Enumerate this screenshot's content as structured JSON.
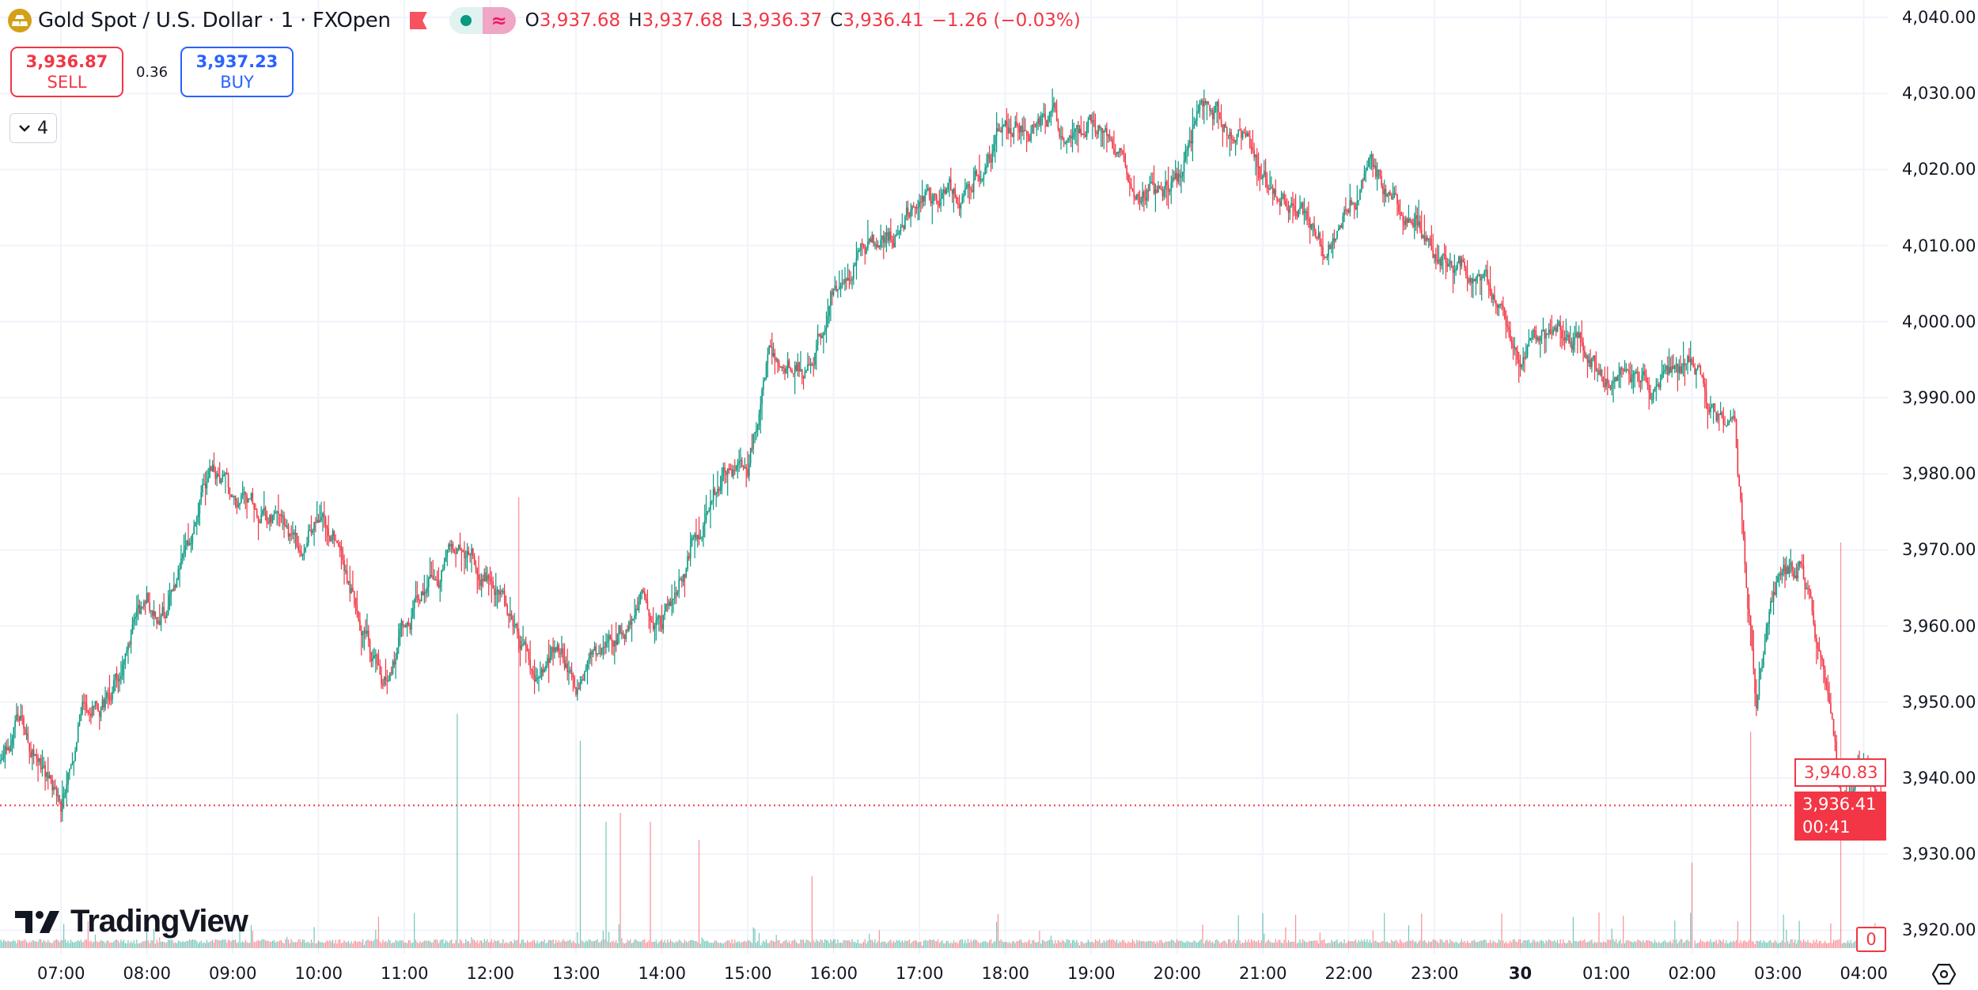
{
  "header": {
    "symbol_title": "Gold Spot / U.S. Dollar · 1 · FXOpen",
    "ohlc": {
      "o_label": "O",
      "o": "3,937.68",
      "h_label": "H",
      "h": "3,937.68",
      "l_label": "L",
      "l": "3,936.37",
      "c_label": "C",
      "c": "3,936.41",
      "change": "−1.26 (−0.03%)"
    },
    "icons": {
      "logo": "gold-bars-icon",
      "flag": "flag-icon",
      "status": "market-open-dot-icon",
      "data": "delayed-data-icon"
    }
  },
  "trade": {
    "sell_price": "3,936.87",
    "sell_label": "SELL",
    "spread": "0.36",
    "buy_price": "3,937.23",
    "buy_label": "BUY"
  },
  "indicators_toggle": {
    "count": "4"
  },
  "branding": {
    "logo_text": "TradingView"
  },
  "price_tags": {
    "high_marker": "3,940.83",
    "last_price": "3,936.41",
    "countdown": "00:41",
    "volume_label": "0"
  },
  "colors": {
    "up": "#089981",
    "down": "#f23645",
    "grid": "#f0f3fa",
    "accent": "#2962ff"
  },
  "chart_data": {
    "type": "candlestick",
    "interval": "1 minute",
    "ylim": [
      3915,
      4042
    ],
    "y_ticks": [
      "4,040.00",
      "4,030.00",
      "4,020.00",
      "4,010.00",
      "4,000.00",
      "3,990.00",
      "3,980.00",
      "3,970.00",
      "3,960.00",
      "3,950.00",
      "3,940.00",
      "3,930.00",
      "3,920.00"
    ],
    "x_ticks": [
      "07:00",
      "08:00",
      "09:00",
      "10:00",
      "11:00",
      "12:00",
      "13:00",
      "14:00",
      "15:00",
      "16:00",
      "17:00",
      "18:00",
      "19:00",
      "20:00",
      "21:00",
      "22:00",
      "23:00",
      "30",
      "01:00",
      "02:00",
      "03:00",
      "04:00"
    ],
    "grid": true,
    "last_price": 3936.41,
    "close_path": [
      [
        "06:15",
        3940
      ],
      [
        "06:30",
        3948
      ],
      [
        "06:45",
        3942
      ],
      [
        "07:00",
        3937
      ],
      [
        "07:15",
        3950
      ],
      [
        "07:30",
        3950
      ],
      [
        "07:45",
        3956
      ],
      [
        "08:00",
        3963
      ],
      [
        "08:15",
        3962
      ],
      [
        "08:30",
        3971
      ],
      [
        "08:45",
        3981
      ],
      [
        "09:00",
        3976
      ],
      [
        "09:15",
        3976
      ],
      [
        "09:30",
        3974
      ],
      [
        "09:45",
        3970
      ],
      [
        "10:00",
        3975
      ],
      [
        "10:15",
        3970
      ],
      [
        "10:30",
        3961
      ],
      [
        "10:45",
        3952
      ],
      [
        "11:00",
        3960
      ],
      [
        "11:15",
        3964
      ],
      [
        "11:30",
        3968
      ],
      [
        "11:45",
        3970
      ],
      [
        "12:00",
        3966
      ],
      [
        "12:15",
        3960
      ],
      [
        "12:30",
        3953
      ],
      [
        "12:45",
        3957
      ],
      [
        "13:00",
        3953
      ],
      [
        "13:15",
        3956
      ],
      [
        "13:30",
        3959
      ],
      [
        "13:45",
        3963
      ],
      [
        "14:00",
        3961
      ],
      [
        "14:15",
        3968
      ],
      [
        "14:30",
        3974
      ],
      [
        "14:45",
        3981
      ],
      [
        "15:00",
        3980
      ],
      [
        "15:15",
        3996
      ],
      [
        "15:30",
        3995
      ],
      [
        "15:45",
        3993
      ],
      [
        "16:00",
        4005
      ],
      [
        "16:15",
        4009
      ],
      [
        "16:30",
        4010
      ],
      [
        "16:45",
        4012
      ],
      [
        "17:00",
        4017
      ],
      [
        "17:15",
        4017
      ],
      [
        "17:30",
        4017
      ],
      [
        "17:45",
        4021
      ],
      [
        "18:00",
        4025
      ],
      [
        "18:15",
        4026
      ],
      [
        "18:30",
        4027
      ],
      [
        "18:45",
        4025
      ],
      [
        "19:00",
        4026
      ],
      [
        "19:15",
        4024
      ],
      [
        "19:30",
        4019
      ],
      [
        "19:45",
        4017
      ],
      [
        "20:00",
        4018
      ],
      [
        "20:15",
        4028
      ],
      [
        "20:30",
        4027
      ],
      [
        "20:45",
        4025
      ],
      [
        "21:00",
        4019
      ],
      [
        "21:15",
        4017
      ],
      [
        "21:30",
        4014
      ],
      [
        "21:45",
        4008
      ],
      [
        "22:00",
        4016
      ],
      [
        "22:15",
        4020
      ],
      [
        "22:30",
        4017
      ],
      [
        "22:45",
        4014
      ],
      [
        "23:00",
        4010
      ],
      [
        "23:15",
        4008
      ],
      [
        "23:30",
        4007
      ],
      [
        "23:45",
        4002
      ],
      [
        "00:00",
        3994
      ],
      [
        "00:15",
        3998
      ],
      [
        "00:30",
        3999
      ],
      [
        "00:45",
        3996
      ],
      [
        "01:00",
        3994
      ],
      [
        "01:15",
        3994
      ],
      [
        "01:30",
        3991
      ],
      [
        "01:45",
        3993
      ],
      [
        "02:00",
        3994
      ],
      [
        "02:15",
        3988
      ],
      [
        "02:30",
        3985
      ],
      [
        "02:45",
        3950
      ],
      [
        "03:00",
        3966
      ],
      [
        "03:15",
        3968
      ],
      [
        "03:30",
        3955
      ],
      [
        "03:45",
        3936
      ],
      [
        "04:00",
        3942
      ],
      [
        "04:15",
        3936.41
      ]
    ],
    "volume_spikes": [
      [
        "11:37",
        0.52
      ],
      [
        "12:20",
        1.0
      ],
      [
        "13:03",
        0.46
      ],
      [
        "13:21",
        0.28
      ],
      [
        "13:31",
        0.3
      ],
      [
        "13:52",
        0.28
      ],
      [
        "14:26",
        0.24
      ],
      [
        "15:45",
        0.16
      ],
      [
        "02:00",
        0.19
      ],
      [
        "02:41",
        0.48
      ],
      [
        "03:44",
        0.9
      ]
    ]
  }
}
